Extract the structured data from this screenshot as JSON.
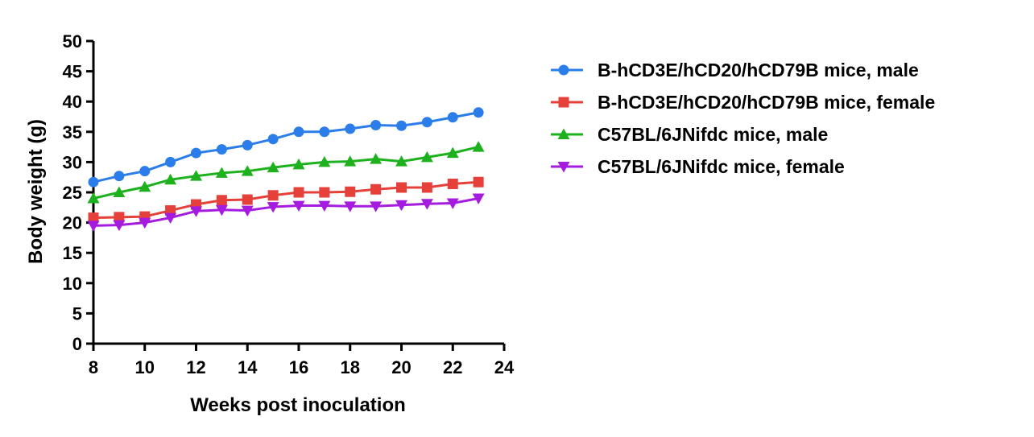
{
  "chart_data": {
    "type": "line",
    "xlabel": "Weeks post inoculation",
    "ylabel": "Body weight (g)",
    "xlim": [
      8,
      24
    ],
    "ylim": [
      0,
      50
    ],
    "xticks": [
      8,
      10,
      12,
      14,
      16,
      18,
      20,
      22,
      24
    ],
    "yticks": [
      0,
      5,
      10,
      15,
      20,
      25,
      30,
      35,
      40,
      45,
      50
    ],
    "grid": false,
    "legend": "right",
    "x": [
      8,
      9,
      10,
      11,
      12,
      13,
      14,
      15,
      16,
      17,
      18,
      19,
      20,
      21,
      22,
      23
    ],
    "series": [
      {
        "name": "B-hCD3E/hCD20/hCD79B mice, male",
        "color": "#2b7de9",
        "marker": "circle",
        "values": [
          26.7,
          27.7,
          28.5,
          30.0,
          31.5,
          32.1,
          32.8,
          33.8,
          35.0,
          35.0,
          35.5,
          36.1,
          36.0,
          36.6,
          37.4,
          38.2
        ]
      },
      {
        "name": "B-hCD3E/hCD20/hCD79B mice, female",
        "color": "#e5403a",
        "marker": "square",
        "values": [
          20.8,
          20.9,
          21.0,
          22.0,
          23.0,
          23.7,
          23.8,
          24.5,
          25.0,
          25.0,
          25.1,
          25.5,
          25.8,
          25.8,
          26.4,
          26.7
        ]
      },
      {
        "name": "C57BL/6JNifdc mice, male",
        "color": "#1db21d",
        "marker": "triangle-up",
        "values": [
          24.0,
          25.0,
          25.9,
          27.1,
          27.7,
          28.2,
          28.5,
          29.1,
          29.6,
          30.0,
          30.1,
          30.5,
          30.1,
          30.8,
          31.5,
          32.5
        ]
      },
      {
        "name": "C57BL/6JNifdc mice, female",
        "color": "#a51ce0",
        "marker": "triangle-down",
        "values": [
          19.5,
          19.6,
          20.0,
          20.8,
          21.9,
          22.1,
          22.0,
          22.6,
          22.8,
          22.8,
          22.7,
          22.7,
          22.9,
          23.1,
          23.2,
          24.0
        ]
      }
    ]
  }
}
